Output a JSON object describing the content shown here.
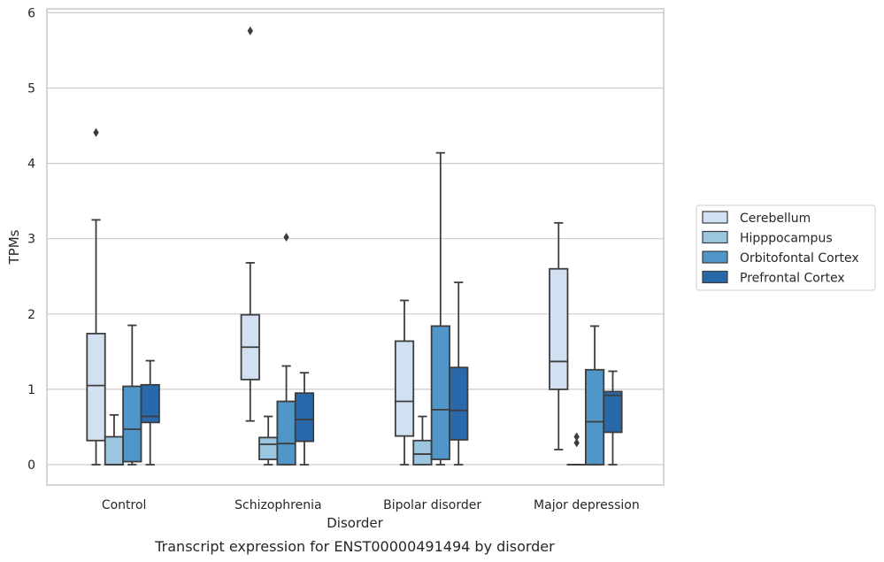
{
  "chart_data": {
    "type": "box",
    "caption": "Transcript expression for ENST00000491494 by disorder",
    "xlabel": "Disorder",
    "ylabel": "TPMs",
    "ylim": [
      -0.27,
      6.1
    ],
    "yticks": [
      0,
      1,
      2,
      3,
      4,
      5,
      6
    ],
    "grid": "horizontal",
    "legend_position": "right",
    "categories": [
      "Control",
      "Schizophrenia",
      "Bipolar disorder",
      "Major depression"
    ],
    "series": [
      {
        "name": "Cerebellum",
        "color": "#d2e1f1",
        "boxes": [
          {
            "whislo": 0,
            "q1": 0.32,
            "med": 1.05,
            "q3": 1.74,
            "whishi": 3.25,
            "fliers": [
              4.41
            ]
          },
          {
            "whislo": 0.58,
            "q1": 1.13,
            "med": 1.56,
            "q3": 1.99,
            "whishi": 2.68,
            "fliers": [
              5.76
            ]
          },
          {
            "whislo": 0,
            "q1": 0.38,
            "med": 0.84,
            "q3": 1.64,
            "whishi": 2.18,
            "fliers": []
          },
          {
            "whislo": 0.2,
            "q1": 1.0,
            "med": 1.37,
            "q3": 2.6,
            "whishi": 3.21,
            "fliers": []
          }
        ]
      },
      {
        "name": "Hipppocampus",
        "color": "#9cc6df",
        "boxes": [
          {
            "whislo": 0,
            "q1": 0,
            "med": 0,
            "q3": 0.37,
            "whishi": 0.66,
            "fliers": []
          },
          {
            "whislo": 0,
            "q1": 0.07,
            "med": 0.27,
            "q3": 0.36,
            "whishi": 0.64,
            "fliers": []
          },
          {
            "whislo": 0,
            "q1": 0,
            "med": 0.14,
            "q3": 0.32,
            "whishi": 0.64,
            "fliers": []
          },
          {
            "whislo": 0,
            "q1": 0,
            "med": 0,
            "q3": 0,
            "whishi": 0,
            "fliers": [
              0.29,
              0.37
            ]
          }
        ]
      },
      {
        "name": "Orbitofontal Cortex",
        "color": "#5096c9",
        "boxes": [
          {
            "whislo": 0,
            "q1": 0.04,
            "med": 0.47,
            "q3": 1.04,
            "whishi": 1.85,
            "fliers": []
          },
          {
            "whislo": 0,
            "q1": 0,
            "med": 0.28,
            "q3": 0.84,
            "whishi": 1.31,
            "fliers": [
              3.02
            ]
          },
          {
            "whislo": 0,
            "q1": 0.07,
            "med": 0.73,
            "q3": 1.84,
            "whishi": 4.14,
            "fliers": []
          },
          {
            "whislo": 0,
            "q1": 0,
            "med": 0.57,
            "q3": 1.26,
            "whishi": 1.84,
            "fliers": []
          }
        ]
      },
      {
        "name": "Prefrontal Cortex",
        "color": "#2868ab",
        "boxes": [
          {
            "whislo": 0,
            "q1": 0.56,
            "med": 0.64,
            "q3": 1.06,
            "whishi": 1.38,
            "fliers": []
          },
          {
            "whislo": 0,
            "q1": 0.31,
            "med": 0.6,
            "q3": 0.95,
            "whishi": 1.22,
            "fliers": []
          },
          {
            "whislo": 0,
            "q1": 0.33,
            "med": 0.72,
            "q3": 1.29,
            "whishi": 2.42,
            "fliers": []
          },
          {
            "whislo": 0,
            "q1": 0.43,
            "med": 0.92,
            "q3": 0.97,
            "whishi": 1.24,
            "fliers": []
          }
        ]
      }
    ]
  }
}
